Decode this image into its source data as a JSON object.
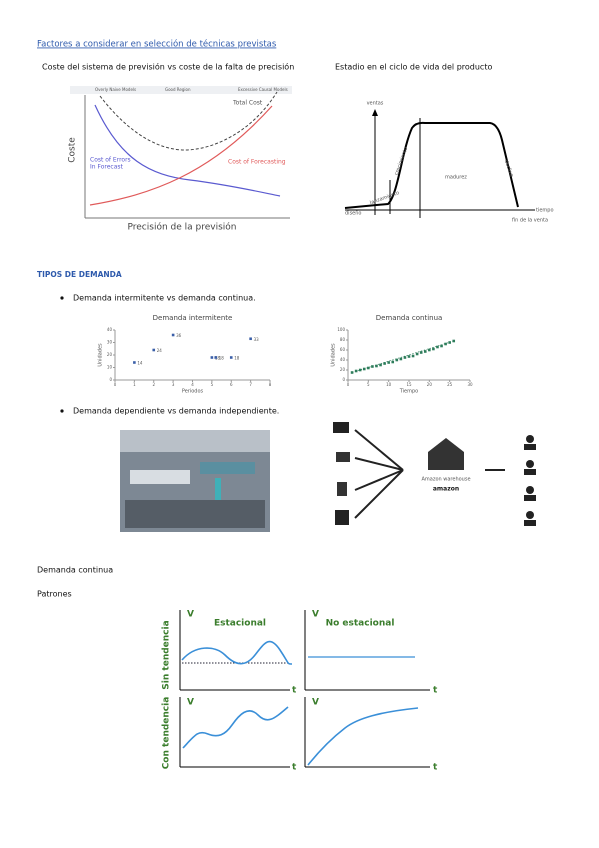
{
  "link": "Factores a considerar en selección de técnicas previstas",
  "captions": [
    "Coste del sistema de previsión vs coste de la falta de precisión",
    "Estadio en el ciclo de vida del producto"
  ],
  "cost_chart": {
    "zones": [
      "Overly Naive Models",
      "Good Region",
      "Excessive Causal Models"
    ],
    "total": "Total Cost",
    "ylabel": "Coste",
    "errors": [
      "Cost of Errors",
      "In Forecast"
    ],
    "forecasting": "Cost of Forecasting",
    "xlabel": "Precisión de la previsión"
  },
  "life_cycle": {
    "ylabel": "ventas",
    "xlabel": "tiempo",
    "stages": [
      "diseño",
      "lanzamiento",
      "crecimiento",
      "madurez",
      "declive",
      "fin de la venta"
    ]
  },
  "section_title": "TIPOS DE DEMANDA",
  "bullets": [
    "Demanda intermitente vs demanda continua.",
    "Demanda dependiente vs demanda independiente."
  ],
  "intermittent": {
    "type": "scatter",
    "title": "Demanda intermitente",
    "ylabel": "Unidades",
    "xlabel": "Periodos",
    "x": [
      1,
      2,
      3,
      5,
      5.2,
      6,
      7
    ],
    "values": [
      14,
      24,
      36,
      18,
      18,
      18,
      33
    ],
    "xlim": [
      0,
      8
    ],
    "ylim": [
      0,
      40
    ],
    "xticks": [
      0,
      1,
      2,
      3,
      4,
      5,
      6,
      7,
      8
    ],
    "yticks": [
      0,
      10,
      20,
      30,
      40
    ],
    "color": "#3a5fa8"
  },
  "continuous": {
    "type": "scatter",
    "title": "Demanda continua",
    "ylabel": "Unidades",
    "xlabel": "Tiempo",
    "x": [
      1,
      2,
      3,
      4,
      5,
      6,
      7,
      8,
      9,
      10,
      11,
      12,
      13,
      14,
      15,
      16,
      17,
      18,
      19,
      20,
      21,
      22,
      23,
      24,
      25,
      26
    ],
    "values": [
      15,
      18,
      20,
      22,
      24,
      27,
      28,
      30,
      33,
      35,
      36,
      40,
      42,
      45,
      47,
      48,
      52,
      55,
      57,
      60,
      62,
      66,
      68,
      72,
      75,
      78
    ],
    "xlim": [
      0,
      30
    ],
    "ylim": [
      0,
      100
    ],
    "xticks": [
      0,
      5,
      10,
      15,
      20,
      25,
      30
    ],
    "yticks": [
      0,
      20,
      40,
      60,
      80,
      100
    ],
    "color": "#2e7d5b"
  },
  "warehouse": {
    "name": "Amazon warehouse",
    "brand": "amazon"
  },
  "paragraphs": [
    "Demanda continua",
    "Patrones"
  ],
  "patterns": {
    "columns": [
      "Estacional",
      "No estacional"
    ],
    "rows": [
      "Sin tendencia",
      "Con tendencia"
    ],
    "axis_v": "V",
    "axis_t": "t"
  }
}
